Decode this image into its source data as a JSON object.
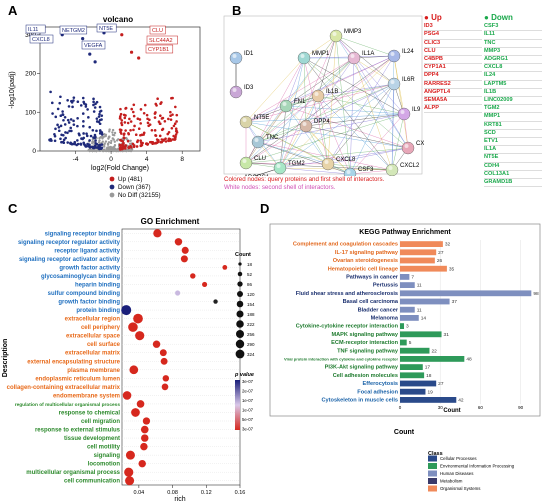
{
  "panels": {
    "A": "A",
    "B": "B",
    "C": "C",
    "D": "D"
  },
  "volcano": {
    "title": "volcano",
    "xlabel": "log2(Fold Change)",
    "ylabel": "-log10(padj)",
    "xticks": [
      "-4",
      "0",
      "4",
      "8"
    ],
    "yticks": [
      "0",
      "100",
      "200",
      "300"
    ],
    "legend": [
      {
        "label": "Up (481)",
        "color": "#c41e1e"
      },
      {
        "label": "Down (367)",
        "color": "#1f2a7a"
      },
      {
        "label": "No Diff (32155)",
        "color": "#9a9a9a"
      }
    ],
    "gene_labels_left": [
      "IL11",
      "NETGM2",
      "NT5E",
      "CXCL8",
      "VEGFA"
    ],
    "gene_labels_right": [
      "CLU",
      "SLC44A2",
      "CYP1B1"
    ]
  },
  "network": {
    "nodes": [
      "ID1",
      "ID3",
      "MMP3",
      "MMP1",
      "IL1A",
      "IL24",
      "IL6R",
      "NT5E",
      "FN1",
      "IL1B",
      "TNC",
      "CLU",
      "DPP4",
      "IL9",
      "TGM2",
      "CXCL10",
      "ADGRG1",
      "CXCL8",
      "CSF3",
      "CXCL2"
    ],
    "legend_colored": "Colored nodes: query proteins and first shell of interactors.",
    "legend_white": "White nodes: second shell of interactors."
  },
  "gene_lists": {
    "up_title": "Up",
    "down_title": "Down",
    "up": [
      "ID3",
      "PSG4",
      "CLIC3",
      "CLU",
      "C4BPB",
      "CYP1A1",
      "DPP4",
      "RARRES2",
      "ANGPTL4",
      "SEMA5A",
      "ALPP"
    ],
    "down": [
      "CSF3",
      "IL11",
      "TNC",
      "MMP3",
      "ADGRG1",
      "CXCL8",
      "IL24",
      "LAPTM5",
      "IL1B",
      "LINC02009",
      "TGM2",
      "MMP1",
      "KRT81",
      "SCD",
      "ETV1",
      "IL1A",
      "NT5E",
      "CDH4",
      "COL13A1",
      "GRAMD1B"
    ]
  },
  "go": {
    "title": "GO Enrichment",
    "xlabel": "rich",
    "ylabel": "Description",
    "xticks": [
      "0.04",
      "0.08",
      "0.12",
      "0.16"
    ],
    "count_title": "Count",
    "count_values": [
      "18",
      "52",
      "86",
      "120",
      "154",
      "188",
      "222",
      "256",
      "290",
      "324"
    ],
    "pvalue_title": "p value",
    "pvalue_ticks": [
      "3e-07",
      "2e-07",
      "1e-07",
      "1e-07",
      "5e-07",
      "3e-07"
    ],
    "colors": {
      "blue": "#1f6fbf",
      "orange": "#e86a1a",
      "red": "#d6281e",
      "green": "#2d8a2d"
    }
  },
  "chart_data": [
    {
      "type": "scatter",
      "title": "GO Enrichment",
      "xlabel": "rich",
      "ylabel": "Description",
      "xlim": [
        0.02,
        0.16
      ],
      "categories": [
        {
          "term": "signaling receptor binding",
          "group": "blue",
          "rich": 0.062,
          "count": 200,
          "p": 0.5
        },
        {
          "term": "signaling receptor regulator activity",
          "group": "blue",
          "rich": 0.087,
          "count": 150,
          "p": 0.5
        },
        {
          "term": "receptor ligand activity",
          "group": "blue",
          "rich": 0.095,
          "count": 130,
          "p": 0.5
        },
        {
          "term": "signaling receptor activator activity",
          "group": "blue",
          "rich": 0.094,
          "count": 130,
          "p": 0.5
        },
        {
          "term": "growth factor activity",
          "group": "blue",
          "rich": 0.142,
          "count": 40,
          "p": 0.5
        },
        {
          "term": "glycosaminoglycan binding",
          "group": "blue",
          "rich": 0.104,
          "count": 60,
          "p": 0.5
        },
        {
          "term": "heparin binding",
          "group": "blue",
          "rich": 0.118,
          "count": 50,
          "p": 0.5
        },
        {
          "term": "sulfur compound binding",
          "group": "blue",
          "rich": 0.086,
          "count": 50,
          "p": 0.2
        },
        {
          "term": "growth factor binding",
          "group": "blue",
          "rich": 0.131,
          "count": 30,
          "p": 0.0
        },
        {
          "term": "protein binding",
          "group": "blue",
          "rich": 0.025,
          "count": 324,
          "p": 1.0
        },
        {
          "term": "extracellular region",
          "group": "orange",
          "rich": 0.039,
          "count": 300,
          "p": 0.6
        },
        {
          "term": "cell periphery",
          "group": "orange",
          "rich": 0.033,
          "count": 290,
          "p": 0.6
        },
        {
          "term": "extracellular space",
          "group": "orange",
          "rich": 0.041,
          "count": 260,
          "p": 0.6
        },
        {
          "term": "cell surface",
          "group": "orange",
          "rich": 0.061,
          "count": 150,
          "p": 0.6
        },
        {
          "term": "extracellular matrix",
          "group": "orange",
          "rich": 0.069,
          "count": 120,
          "p": 0.6
        },
        {
          "term": "external encapsulating structure",
          "group": "orange",
          "rich": 0.07,
          "count": 120,
          "p": 0.6
        },
        {
          "term": "plasma membrane",
          "group": "orange",
          "rich": 0.034,
          "count": 230,
          "p": 0.6
        },
        {
          "term": "endoplasmic reticulum lumen",
          "group": "orange",
          "rich": 0.072,
          "count": 100,
          "p": 0.6
        },
        {
          "term": "collagen-containing extracellular matrix",
          "group": "orange",
          "rich": 0.071,
          "count": 110,
          "p": 0.6
        },
        {
          "term": "endomembrane system",
          "group": "orange",
          "rich": 0.026,
          "count": 220,
          "p": 0.6
        },
        {
          "term": "regulation of multicellular organismal process",
          "group": "green",
          "rich": 0.042,
          "count": 160,
          "p": 0.6
        },
        {
          "term": "response to chemical",
          "group": "green",
          "rich": 0.036,
          "count": 230,
          "p": 0.6
        },
        {
          "term": "cell migration",
          "group": "green",
          "rich": 0.049,
          "count": 140,
          "p": 0.6
        },
        {
          "term": "response to external stimulus",
          "group": "green",
          "rich": 0.047,
          "count": 160,
          "p": 0.6
        },
        {
          "term": "tissue development",
          "group": "green",
          "rich": 0.047,
          "count": 150,
          "p": 0.6
        },
        {
          "term": "cell motility",
          "group": "green",
          "rich": 0.046,
          "count": 150,
          "p": 0.6
        },
        {
          "term": "signaling",
          "group": "green",
          "rich": 0.03,
          "count": 250,
          "p": 0.6
        },
        {
          "term": "locomotion",
          "group": "green",
          "rich": 0.044,
          "count": 150,
          "p": 0.6
        },
        {
          "term": "multicellular organismal process",
          "group": "green",
          "rich": 0.028,
          "count": 260,
          "p": 0.6
        },
        {
          "term": "cell communication",
          "group": "green",
          "rich": 0.029,
          "count": 250,
          "p": 0.6
        }
      ]
    },
    {
      "type": "bar",
      "title": "KEGG Pathway Enrichment",
      "xlabel": "Count",
      "categories": [
        {
          "term": "Complement and coagulation cascades",
          "class": "Organismal Systems",
          "value": 32
        },
        {
          "term": "IL-17 signaling pathway",
          "class": "Organismal Systems",
          "value": 27
        },
        {
          "term": "Ovarian steroidogenesis",
          "class": "Organismal Systems",
          "value": 26
        },
        {
          "term": "Hematopoietic cell lineage",
          "class": "Organismal Systems",
          "value": 35
        },
        {
          "term": "Pathways in cancer",
          "class": "Human Diseases",
          "value": 7
        },
        {
          "term": "Pertussis",
          "class": "Human Diseases",
          "value": 11
        },
        {
          "term": "Fluid shear stress and atherosclerosis",
          "class": "Human Diseases",
          "value": 98
        },
        {
          "term": "Basal cell carcinoma",
          "class": "Human Diseases",
          "value": 37
        },
        {
          "term": "Bladder cancer",
          "class": "Human Diseases",
          "value": 11
        },
        {
          "term": "Melanoma",
          "class": "Human Diseases",
          "value": 14
        },
        {
          "term": "Cytokine-cytokine receptor interaction",
          "class": "Environmental Information Processing",
          "value": 3
        },
        {
          "term": "MAPK signaling pathway",
          "class": "Environmental Information Processing",
          "value": 31
        },
        {
          "term": "ECM-receptor interaction",
          "class": "Environmental Information Processing",
          "value": 5
        },
        {
          "term": "TNF signaling pathway",
          "class": "Environmental Information Processing",
          "value": 22
        },
        {
          "term": "Viral protein interaction with cytokine and cytokine receptor",
          "class": "Environmental Information Processing",
          "value": 48
        },
        {
          "term": "PI3K-Akt signaling pathway",
          "class": "Environmental Information Processing",
          "value": 17
        },
        {
          "term": "Cell adhesion molecules",
          "class": "Environmental Information Processing",
          "value": 18
        },
        {
          "term": "Efferocytosis",
          "class": "Cellular Processes",
          "value": 27
        },
        {
          "term": "Focal adhesion",
          "class": "Cellular Processes",
          "value": 19
        },
        {
          "term": "Cytoskeleton in muscle cells",
          "class": "Cellular Processes",
          "value": 42
        }
      ],
      "xticks": [
        "0",
        "30",
        "60",
        "90"
      ],
      "xlim": [
        0,
        100
      ],
      "legend_title": "Class",
      "legend": [
        {
          "name": "Cellular Processes",
          "color": "#2a4a8a"
        },
        {
          "name": "Environmental Information Processing",
          "color": "#2e9a5a"
        },
        {
          "name": "Human Diseases",
          "color": "#7e8fbf"
        },
        {
          "name": "Metabolism",
          "color": "#3a3a6a"
        },
        {
          "name": "Organismal Systems",
          "color": "#f08a5a"
        }
      ]
    }
  ],
  "kegg_bottom_label": "Count",
  "kegg_class_colors": {
    "Cellular Processes": "#2a4a8a",
    "Environmental Information Processing": "#2e9a5a",
    "Human Diseases": "#7e8fbf",
    "Metabolism": "#3a3a6a",
    "Organismal Systems": "#f08a5a"
  },
  "kegg_label_colors": {
    "Cellular Processes": "#1a62a8",
    "Environmental Information Processing": "#1d7a2d",
    "Human Diseases": "#1a2f6e",
    "Organismal Systems": "#e2681e"
  }
}
